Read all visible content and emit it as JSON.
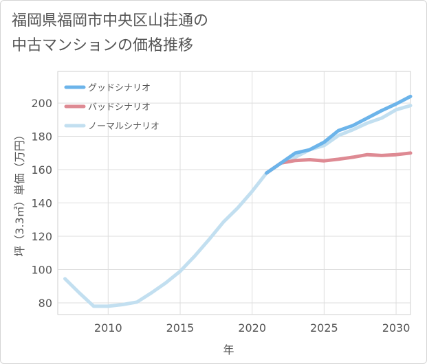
{
  "title_line1": "福岡県福岡市中央区山荘通の",
  "title_line2": "中古マンションの価格推移",
  "chart_data": {
    "type": "line",
    "title": "福岡県福岡市中央区山荘通の中古マンションの価格推移",
    "xlabel": "年",
    "ylabel": "坪（3.3㎡）単価（万円）",
    "xlim": [
      2006.5,
      2031
    ],
    "ylim": [
      73,
      219
    ],
    "xticks": [
      2010,
      2015,
      2020,
      2025,
      2030
    ],
    "yticks": [
      80,
      100,
      120,
      140,
      160,
      180,
      200
    ],
    "grid": true,
    "legend_position": "top-left",
    "series": [
      {
        "name": "グッドシナリオ",
        "color": "#6cb4ea",
        "x": [
          2021,
          2022,
          2023,
          2024,
          2025,
          2026,
          2027,
          2028,
          2029,
          2030,
          2031
        ],
        "y": [
          158,
          164,
          170,
          172,
          176.5,
          183.5,
          186.5,
          191,
          195.5,
          199.5,
          204
        ]
      },
      {
        "name": "バッドシナリオ",
        "color": "#de8a93",
        "x": [
          2021,
          2022,
          2023,
          2024,
          2025,
          2026,
          2027,
          2028,
          2029,
          2030,
          2031
        ],
        "y": [
          158,
          164,
          165.5,
          166,
          165.3,
          166.3,
          167.5,
          169,
          168.5,
          169,
          170
        ]
      },
      {
        "name": "ノーマルシナリオ",
        "color": "#c2dff0",
        "x": [
          2007,
          2008,
          2009,
          2010,
          2011,
          2012,
          2013,
          2014,
          2015,
          2016,
          2017,
          2018,
          2019,
          2020,
          2021,
          2022,
          2023,
          2024,
          2025,
          2026,
          2027,
          2028,
          2029,
          2030,
          2031
        ],
        "y": [
          94.5,
          86,
          78,
          78,
          79,
          80.5,
          86,
          92,
          99,
          108,
          118,
          128.5,
          137,
          147,
          158,
          164,
          167.5,
          172,
          174.5,
          180.5,
          184,
          188,
          191,
          196,
          198.5
        ]
      }
    ]
  }
}
